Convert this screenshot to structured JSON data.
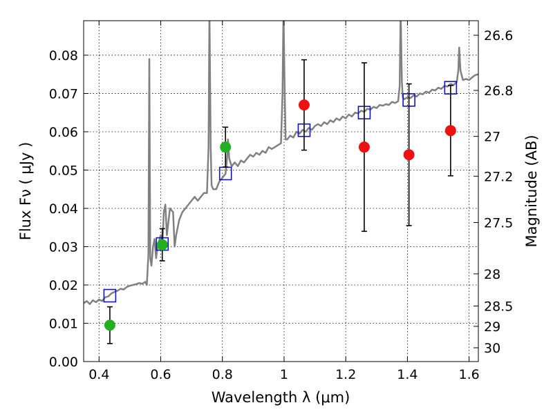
{
  "chart_data": {
    "type": "scatter",
    "title": "",
    "xlabel": "Wavelength  λ (μm)",
    "ylabel": "Flux  Fν  ( μJy )",
    "ylabel_right": "Magnitude (AB)",
    "xlim": [
      0.35,
      1.63
    ],
    "ylim": [
      0.0,
      0.089
    ],
    "grid": true,
    "grid_style": "dotted",
    "x_ticks": [
      0.4,
      0.6,
      0.8,
      1.0,
      1.2,
      1.4,
      1.6
    ],
    "x_tick_labels": [
      "0.4",
      "0.6",
      "0.8",
      "1",
      "1.2",
      "1.4",
      "1.6"
    ],
    "y_ticks": [
      0.0,
      0.01,
      0.02,
      0.03,
      0.04,
      0.05,
      0.06,
      0.07,
      0.08
    ],
    "y_tick_labels": [
      "0.00",
      "0.01",
      "0.02",
      "0.03",
      "0.04",
      "0.05",
      "0.06",
      "0.07",
      "0.08"
    ],
    "right_ticks": [
      {
        "flux": 0.0852,
        "label": "26.6"
      },
      {
        "flux": 0.0708,
        "label": "26.8"
      },
      {
        "flux": 0.0588,
        "label": "27"
      },
      {
        "flux": 0.0484,
        "label": "27.2"
      },
      {
        "flux": 0.0363,
        "label": "27.5"
      },
      {
        "flux": 0.0229,
        "label": "28"
      },
      {
        "flux": 0.0145,
        "label": "28.5"
      },
      {
        "flux": 0.0092,
        "label": "29"
      },
      {
        "flux": 0.0036,
        "label": "30"
      }
    ],
    "colors": {
      "sed": "#808080",
      "model": "#1010c8",
      "detected": "#22b022",
      "upper": "#ee1111",
      "errorbar": "#000000"
    },
    "series": [
      {
        "kind": "line",
        "points": [
          [
            0.35,
            0.0152
          ],
          [
            0.36,
            0.0158
          ],
          [
            0.37,
            0.015
          ],
          [
            0.38,
            0.016
          ],
          [
            0.39,
            0.0155
          ],
          [
            0.4,
            0.0162
          ],
          [
            0.41,
            0.0158
          ],
          [
            0.42,
            0.0168
          ],
          [
            0.43,
            0.017
          ],
          [
            0.44,
            0.0178
          ],
          [
            0.45,
            0.0182
          ],
          [
            0.46,
            0.0185
          ],
          [
            0.47,
            0.019
          ],
          [
            0.48,
            0.0188
          ],
          [
            0.49,
            0.0195
          ],
          [
            0.5,
            0.0198
          ],
          [
            0.51,
            0.02
          ],
          [
            0.52,
            0.0202
          ],
          [
            0.53,
            0.0205
          ],
          [
            0.54,
            0.0203
          ],
          [
            0.55,
            0.0208
          ],
          [
            0.555,
            0.02
          ],
          [
            0.56,
            0.028
          ],
          [
            0.563,
            0.079
          ],
          [
            0.566,
            0.027
          ],
          [
            0.57,
            0.025
          ],
          [
            0.575,
            0.03
          ],
          [
            0.58,
            0.032
          ],
          [
            0.585,
            0.027
          ],
          [
            0.59,
            0.03
          ],
          [
            0.6,
            0.033
          ],
          [
            0.605,
            0.03
          ],
          [
            0.61,
            0.039
          ],
          [
            0.615,
            0.041
          ],
          [
            0.62,
            0.033
          ],
          [
            0.63,
            0.04
          ],
          [
            0.64,
            0.039
          ],
          [
            0.645,
            0.03
          ],
          [
            0.65,
            0.033
          ],
          [
            0.66,
            0.037
          ],
          [
            0.67,
            0.039
          ],
          [
            0.68,
            0.04
          ],
          [
            0.69,
            0.041
          ],
          [
            0.7,
            0.042
          ],
          [
            0.71,
            0.043
          ],
          [
            0.72,
            0.042
          ],
          [
            0.73,
            0.043
          ],
          [
            0.74,
            0.044
          ],
          [
            0.75,
            0.044
          ],
          [
            0.755,
            0.056
          ],
          [
            0.758,
            0.092
          ],
          [
            0.762,
            0.056
          ],
          [
            0.765,
            0.046
          ],
          [
            0.77,
            0.045
          ],
          [
            0.78,
            0.045
          ],
          [
            0.79,
            0.047
          ],
          [
            0.8,
            0.048
          ],
          [
            0.81,
            0.049
          ],
          [
            0.815,
            0.053
          ],
          [
            0.818,
            0.058
          ],
          [
            0.822,
            0.053
          ],
          [
            0.83,
            0.051
          ],
          [
            0.84,
            0.052
          ],
          [
            0.85,
            0.051
          ],
          [
            0.86,
            0.0525
          ],
          [
            0.87,
            0.052
          ],
          [
            0.88,
            0.053
          ],
          [
            0.89,
            0.054
          ],
          [
            0.9,
            0.0535
          ],
          [
            0.91,
            0.0545
          ],
          [
            0.92,
            0.054
          ],
          [
            0.93,
            0.055
          ],
          [
            0.94,
            0.0545
          ],
          [
            0.95,
            0.056
          ],
          [
            0.96,
            0.0555
          ],
          [
            0.97,
            0.056
          ],
          [
            0.98,
            0.0565
          ],
          [
            0.99,
            0.057
          ],
          [
            0.995,
            0.07
          ],
          [
            0.998,
            0.092
          ],
          [
            1.002,
            0.07
          ],
          [
            1.005,
            0.058
          ],
          [
            1.01,
            0.058
          ],
          [
            1.02,
            0.059
          ],
          [
            1.03,
            0.0585
          ],
          [
            1.04,
            0.06
          ],
          [
            1.05,
            0.0595
          ],
          [
            1.06,
            0.0605
          ],
          [
            1.07,
            0.06
          ],
          [
            1.08,
            0.061
          ],
          [
            1.09,
            0.0605
          ],
          [
            1.1,
            0.0615
          ],
          [
            1.11,
            0.062
          ],
          [
            1.12,
            0.0615
          ],
          [
            1.13,
            0.0625
          ],
          [
            1.14,
            0.062
          ],
          [
            1.15,
            0.063
          ],
          [
            1.16,
            0.0625
          ],
          [
            1.17,
            0.0635
          ],
          [
            1.18,
            0.063
          ],
          [
            1.19,
            0.064
          ],
          [
            1.2,
            0.0635
          ],
          [
            1.21,
            0.0645
          ],
          [
            1.22,
            0.064
          ],
          [
            1.23,
            0.065
          ],
          [
            1.24,
            0.0648
          ],
          [
            1.25,
            0.0655
          ],
          [
            1.26,
            0.0652
          ],
          [
            1.27,
            0.066
          ],
          [
            1.28,
            0.0658
          ],
          [
            1.29,
            0.0665
          ],
          [
            1.3,
            0.0662
          ],
          [
            1.31,
            0.067
          ],
          [
            1.32,
            0.0668
          ],
          [
            1.33,
            0.0672
          ],
          [
            1.34,
            0.067
          ],
          [
            1.35,
            0.0678
          ],
          [
            1.36,
            0.0675
          ],
          [
            1.37,
            0.068
          ],
          [
            1.375,
            0.072
          ],
          [
            1.378,
            0.092
          ],
          [
            1.382,
            0.073
          ],
          [
            1.385,
            0.069
          ],
          [
            1.39,
            0.0685
          ],
          [
            1.4,
            0.069
          ],
          [
            1.41,
            0.0688
          ],
          [
            1.42,
            0.0695
          ],
          [
            1.43,
            0.0692
          ],
          [
            1.44,
            0.07
          ],
          [
            1.45,
            0.0698
          ],
          [
            1.46,
            0.0705
          ],
          [
            1.47,
            0.0702
          ],
          [
            1.48,
            0.071
          ],
          [
            1.49,
            0.0708
          ],
          [
            1.5,
            0.0715
          ],
          [
            1.51,
            0.0712
          ],
          [
            1.52,
            0.072
          ],
          [
            1.53,
            0.0718
          ],
          [
            1.54,
            0.0725
          ],
          [
            1.55,
            0.0722
          ],
          [
            1.56,
            0.073
          ],
          [
            1.565,
            0.076
          ],
          [
            1.568,
            0.082
          ],
          [
            1.572,
            0.076
          ],
          [
            1.58,
            0.0735
          ],
          [
            1.59,
            0.0738
          ],
          [
            1.6,
            0.0735
          ],
          [
            1.61,
            0.0742
          ],
          [
            1.62,
            0.0748
          ],
          [
            1.63,
            0.075
          ]
        ]
      },
      {
        "kind": "model-squares",
        "x": [
          0.435,
          0.605,
          0.81,
          1.065,
          1.26,
          1.405,
          1.54
        ],
        "y": [
          0.0172,
          0.0307,
          0.0491,
          0.0604,
          0.065,
          0.0683,
          0.0715
        ]
      },
      {
        "kind": "detected",
        "x": [
          0.435,
          0.605,
          0.81
        ],
        "y": [
          0.0095,
          0.0305,
          0.056
        ],
        "yerr": [
          0.0048,
          0.0042,
          0.0052
        ]
      },
      {
        "kind": "upper",
        "x": [
          1.065,
          1.26,
          1.405,
          1.54
        ],
        "y": [
          0.067,
          0.056,
          0.054,
          0.0603
        ],
        "yerr": [
          0.0118,
          0.022,
          0.0185,
          0.0118
        ]
      }
    ]
  }
}
